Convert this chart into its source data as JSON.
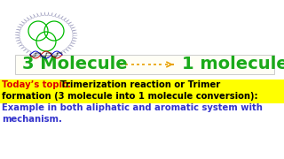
{
  "background_color": "#ffffff",
  "left_text": "3 Molecule",
  "right_text": "1 molecule",
  "molecule_text_color": "#1aaa1a",
  "molecule_fontsize": 14,
  "arrow_color": "#e8a000",
  "box_edge_color": "#cccccc",
  "prefix_text": "Today’s topic: ",
  "prefix_color": "#dd0000",
  "highlight_line1": "Trimerization reaction or Trimer",
  "highlight_line2": "formation (3 molecule into 1 molecule conversion):",
  "highlight_bg": "#ffff00",
  "highlight_color": "#000000",
  "normal_line1": "Example in both aliphatic and aromatic system with",
  "normal_line2": "mechanism.",
  "normal_color": "#3333cc",
  "text_fontsize": 7.2,
  "text_fontweight": "bold"
}
